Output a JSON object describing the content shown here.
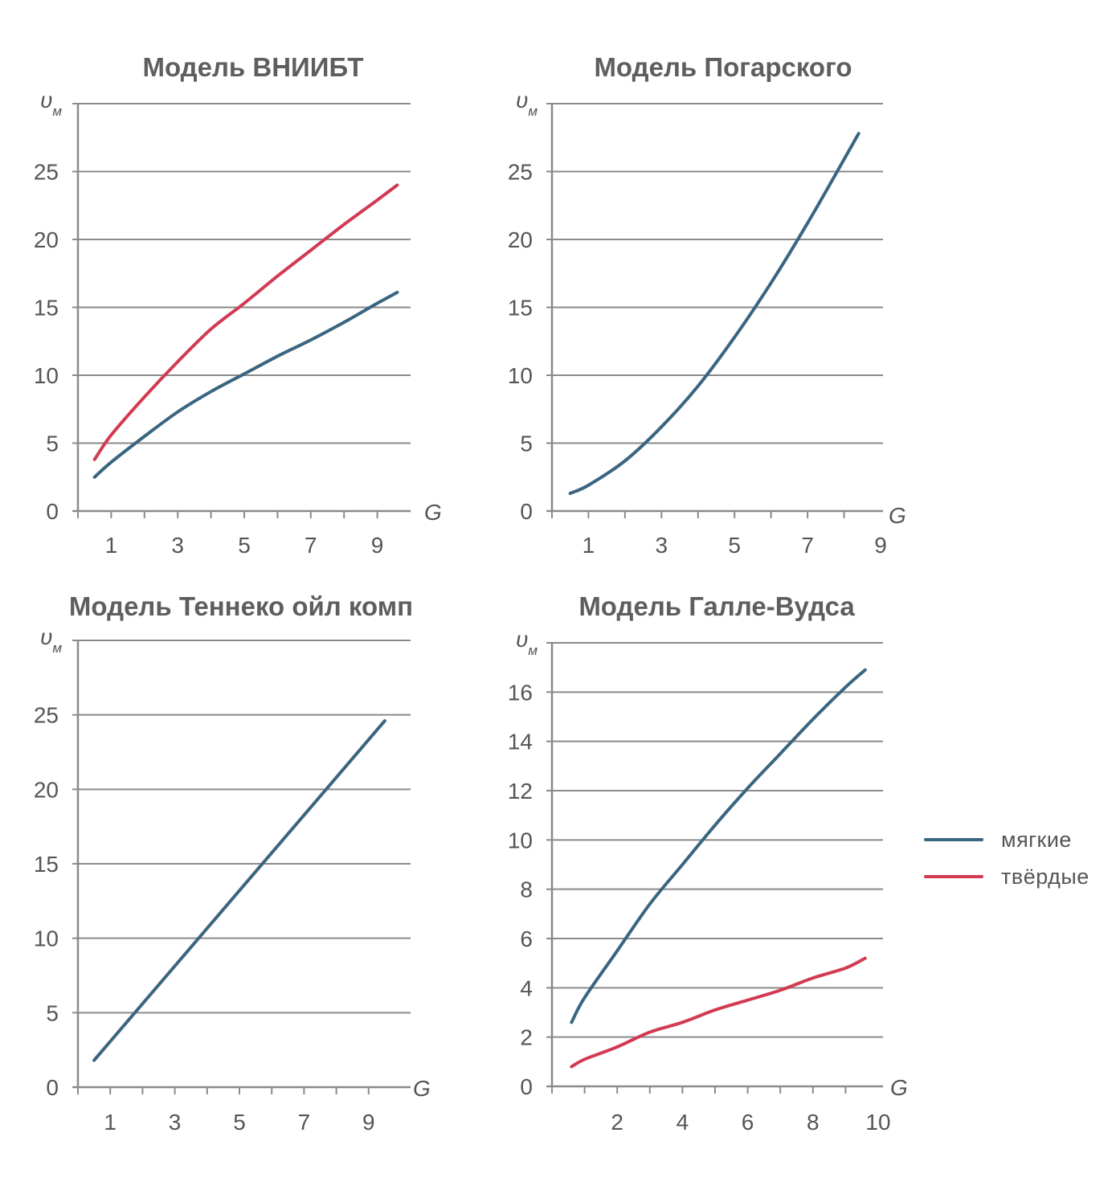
{
  "colors": {
    "soft": "#3a6580",
    "hard": "#d23a52",
    "grid": "#8a8a8a",
    "text": "#555555",
    "title": "#5e5e5e"
  },
  "legend": [
    {
      "key": "soft",
      "label": "мягкие"
    },
    {
      "key": "hard",
      "label": "твёрдые"
    }
  ],
  "chart_data": [
    {
      "type": "line",
      "title": "Модель ВНИИБТ",
      "ylabel_main": "υ",
      "ylabel_sub": "м",
      "xlabel": "G",
      "ylim": [
        0,
        30
      ],
      "yticks": [
        0,
        5,
        10,
        15,
        20,
        25
      ],
      "xlim": [
        0,
        10
      ],
      "xticks": [
        1,
        3,
        5,
        7,
        9
      ],
      "xminor": [
        0,
        1,
        2,
        3,
        4,
        5,
        6,
        7,
        8,
        9
      ],
      "grid": true,
      "series": [
        {
          "color_key": "hard",
          "x": [
            0.5,
            1,
            2,
            3,
            4,
            5,
            6,
            7,
            8,
            9,
            9.6
          ],
          "y": [
            3.8,
            5.6,
            8.4,
            11,
            13.4,
            15.3,
            17.3,
            19.2,
            21.1,
            22.9,
            24
          ]
        },
        {
          "color_key": "soft",
          "x": [
            0.5,
            1,
            2,
            3,
            4,
            5,
            6,
            7,
            8,
            9,
            9.6
          ],
          "y": [
            2.5,
            3.6,
            5.5,
            7.3,
            8.8,
            10.1,
            11.4,
            12.6,
            13.9,
            15.3,
            16.1
          ]
        }
      ]
    },
    {
      "type": "line",
      "title": "Модель Погарского",
      "ylabel_main": "υ",
      "ylabel_sub": "м",
      "xlabel": "G",
      "ylim": [
        0,
        30
      ],
      "yticks": [
        0,
        5,
        10,
        15,
        20,
        25
      ],
      "xlim": [
        0,
        9
      ],
      "xticks": [
        1,
        3,
        5,
        7,
        9
      ],
      "xminor": [
        0,
        1,
        2,
        3,
        4,
        5,
        6,
        7,
        8
      ],
      "grid": true,
      "series": [
        {
          "color_key": "soft",
          "x": [
            0.5,
            1,
            2,
            3,
            4,
            5,
            6,
            7,
            8,
            8.4
          ],
          "y": [
            1.3,
            1.9,
            3.7,
            6.2,
            9.2,
            12.8,
            16.8,
            21.2,
            25.9,
            27.8
          ]
        }
      ]
    },
    {
      "type": "line",
      "title": "Модель Теннеко ойл комп",
      "ylabel_main": "υ",
      "ylabel_sub": "м",
      "xlabel": "G",
      "ylim": [
        0,
        30
      ],
      "yticks": [
        0,
        5,
        10,
        15,
        20,
        25
      ],
      "xlim": [
        0,
        10
      ],
      "xticks": [
        1,
        3,
        5,
        7,
        9
      ],
      "xminor": [
        0,
        1,
        2,
        3,
        4,
        5,
        6,
        7,
        8,
        9
      ],
      "grid": true,
      "series": [
        {
          "color_key": "soft",
          "x": [
            0.5,
            9.5
          ],
          "y": [
            1.8,
            24.6
          ]
        }
      ]
    },
    {
      "type": "line",
      "title": "Модель Галле-Вудса",
      "ylabel_main": "υ",
      "ylabel_sub": "м",
      "xlabel": "G",
      "ylim": [
        0,
        18
      ],
      "yticks": [
        0,
        2,
        4,
        6,
        8,
        10,
        12,
        14,
        16
      ],
      "xlim": [
        0,
        10
      ],
      "xticks": [
        2,
        4,
        6,
        8,
        10
      ],
      "xminor": [
        0,
        1,
        2,
        3,
        4,
        5,
        6,
        7,
        8,
        9
      ],
      "grid": true,
      "series": [
        {
          "color_key": "soft",
          "x": [
            0.6,
            1,
            2,
            3,
            4,
            5,
            6,
            7,
            8,
            9,
            9.6
          ],
          "y": [
            2.6,
            3.6,
            5.5,
            7.4,
            9.0,
            10.6,
            12.1,
            13.5,
            14.9,
            16.2,
            16.9
          ]
        },
        {
          "color_key": "hard",
          "x": [
            0.6,
            1,
            2,
            3,
            4,
            5,
            6,
            7,
            8,
            9,
            9.6
          ],
          "y": [
            0.8,
            1.1,
            1.6,
            2.2,
            2.6,
            3.1,
            3.5,
            3.9,
            4.4,
            4.8,
            5.2
          ]
        }
      ]
    }
  ]
}
